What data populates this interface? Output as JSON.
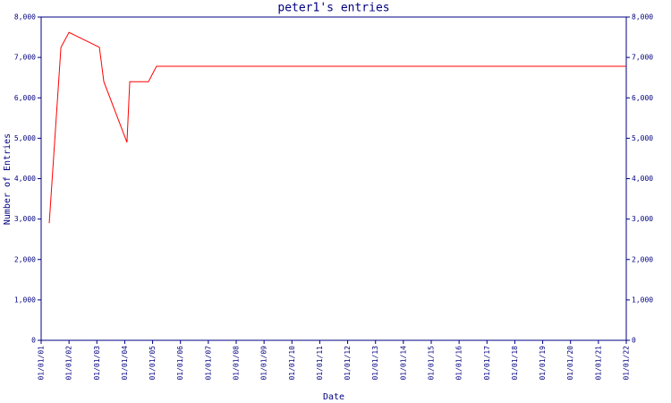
{
  "chart_data": {
    "type": "line",
    "title": "peter1's entries",
    "x_label": "Date",
    "y_label": "Number of Entries",
    "xlim": [
      1,
      22
    ],
    "xticks": [
      {
        "value": 1,
        "label": "01/01/01"
      },
      {
        "value": 2,
        "label": "01/01/02"
      },
      {
        "value": 3,
        "label": "01/01/03"
      },
      {
        "value": 4,
        "label": "01/01/04"
      },
      {
        "value": 5,
        "label": "01/01/05"
      },
      {
        "value": 6,
        "label": "01/01/06"
      },
      {
        "value": 7,
        "label": "01/01/07"
      },
      {
        "value": 8,
        "label": "01/01/08"
      },
      {
        "value": 9,
        "label": "01/01/09"
      },
      {
        "value": 10,
        "label": "01/01/10"
      },
      {
        "value": 11,
        "label": "01/01/11"
      },
      {
        "value": 12,
        "label": "01/01/12"
      },
      {
        "value": 13,
        "label": "01/01/13"
      },
      {
        "value": 14,
        "label": "01/01/14"
      },
      {
        "value": 15,
        "label": "01/01/15"
      },
      {
        "value": 16,
        "label": "01/01/16"
      },
      {
        "value": 17,
        "label": "01/01/17"
      },
      {
        "value": 18,
        "label": "01/01/18"
      },
      {
        "value": 19,
        "label": "01/01/19"
      },
      {
        "value": 20,
        "label": "01/01/20"
      },
      {
        "value": 21,
        "label": "01/01/21"
      },
      {
        "value": 22,
        "label": "01/01/22"
      }
    ],
    "ylim": [
      0,
      8000
    ],
    "yticks": [
      0,
      {
        "value": 1000,
        "label": "1,000"
      },
      {
        "value": 2000,
        "label": "2,000"
      },
      {
        "value": 3000,
        "label": "3,000"
      },
      {
        "value": 4000,
        "label": "4,000"
      },
      {
        "value": 5000,
        "label": "5,000"
      },
      {
        "value": 6000,
        "label": "6,000"
      },
      {
        "value": 7000,
        "label": "7,000"
      },
      {
        "value": 8000,
        "label": "8,000"
      }
    ],
    "series": [
      {
        "color": "#ff0000",
        "x": [
          1.29,
          1.71,
          2.0,
          3.09,
          3.25,
          4.08,
          4.18,
          4.85,
          5.14,
          22
        ],
        "values": [
          2900,
          7250,
          7620,
          7250,
          6400,
          4900,
          6400,
          6400,
          6780,
          6780
        ]
      }
    ],
    "axis_color": "#000080"
  }
}
